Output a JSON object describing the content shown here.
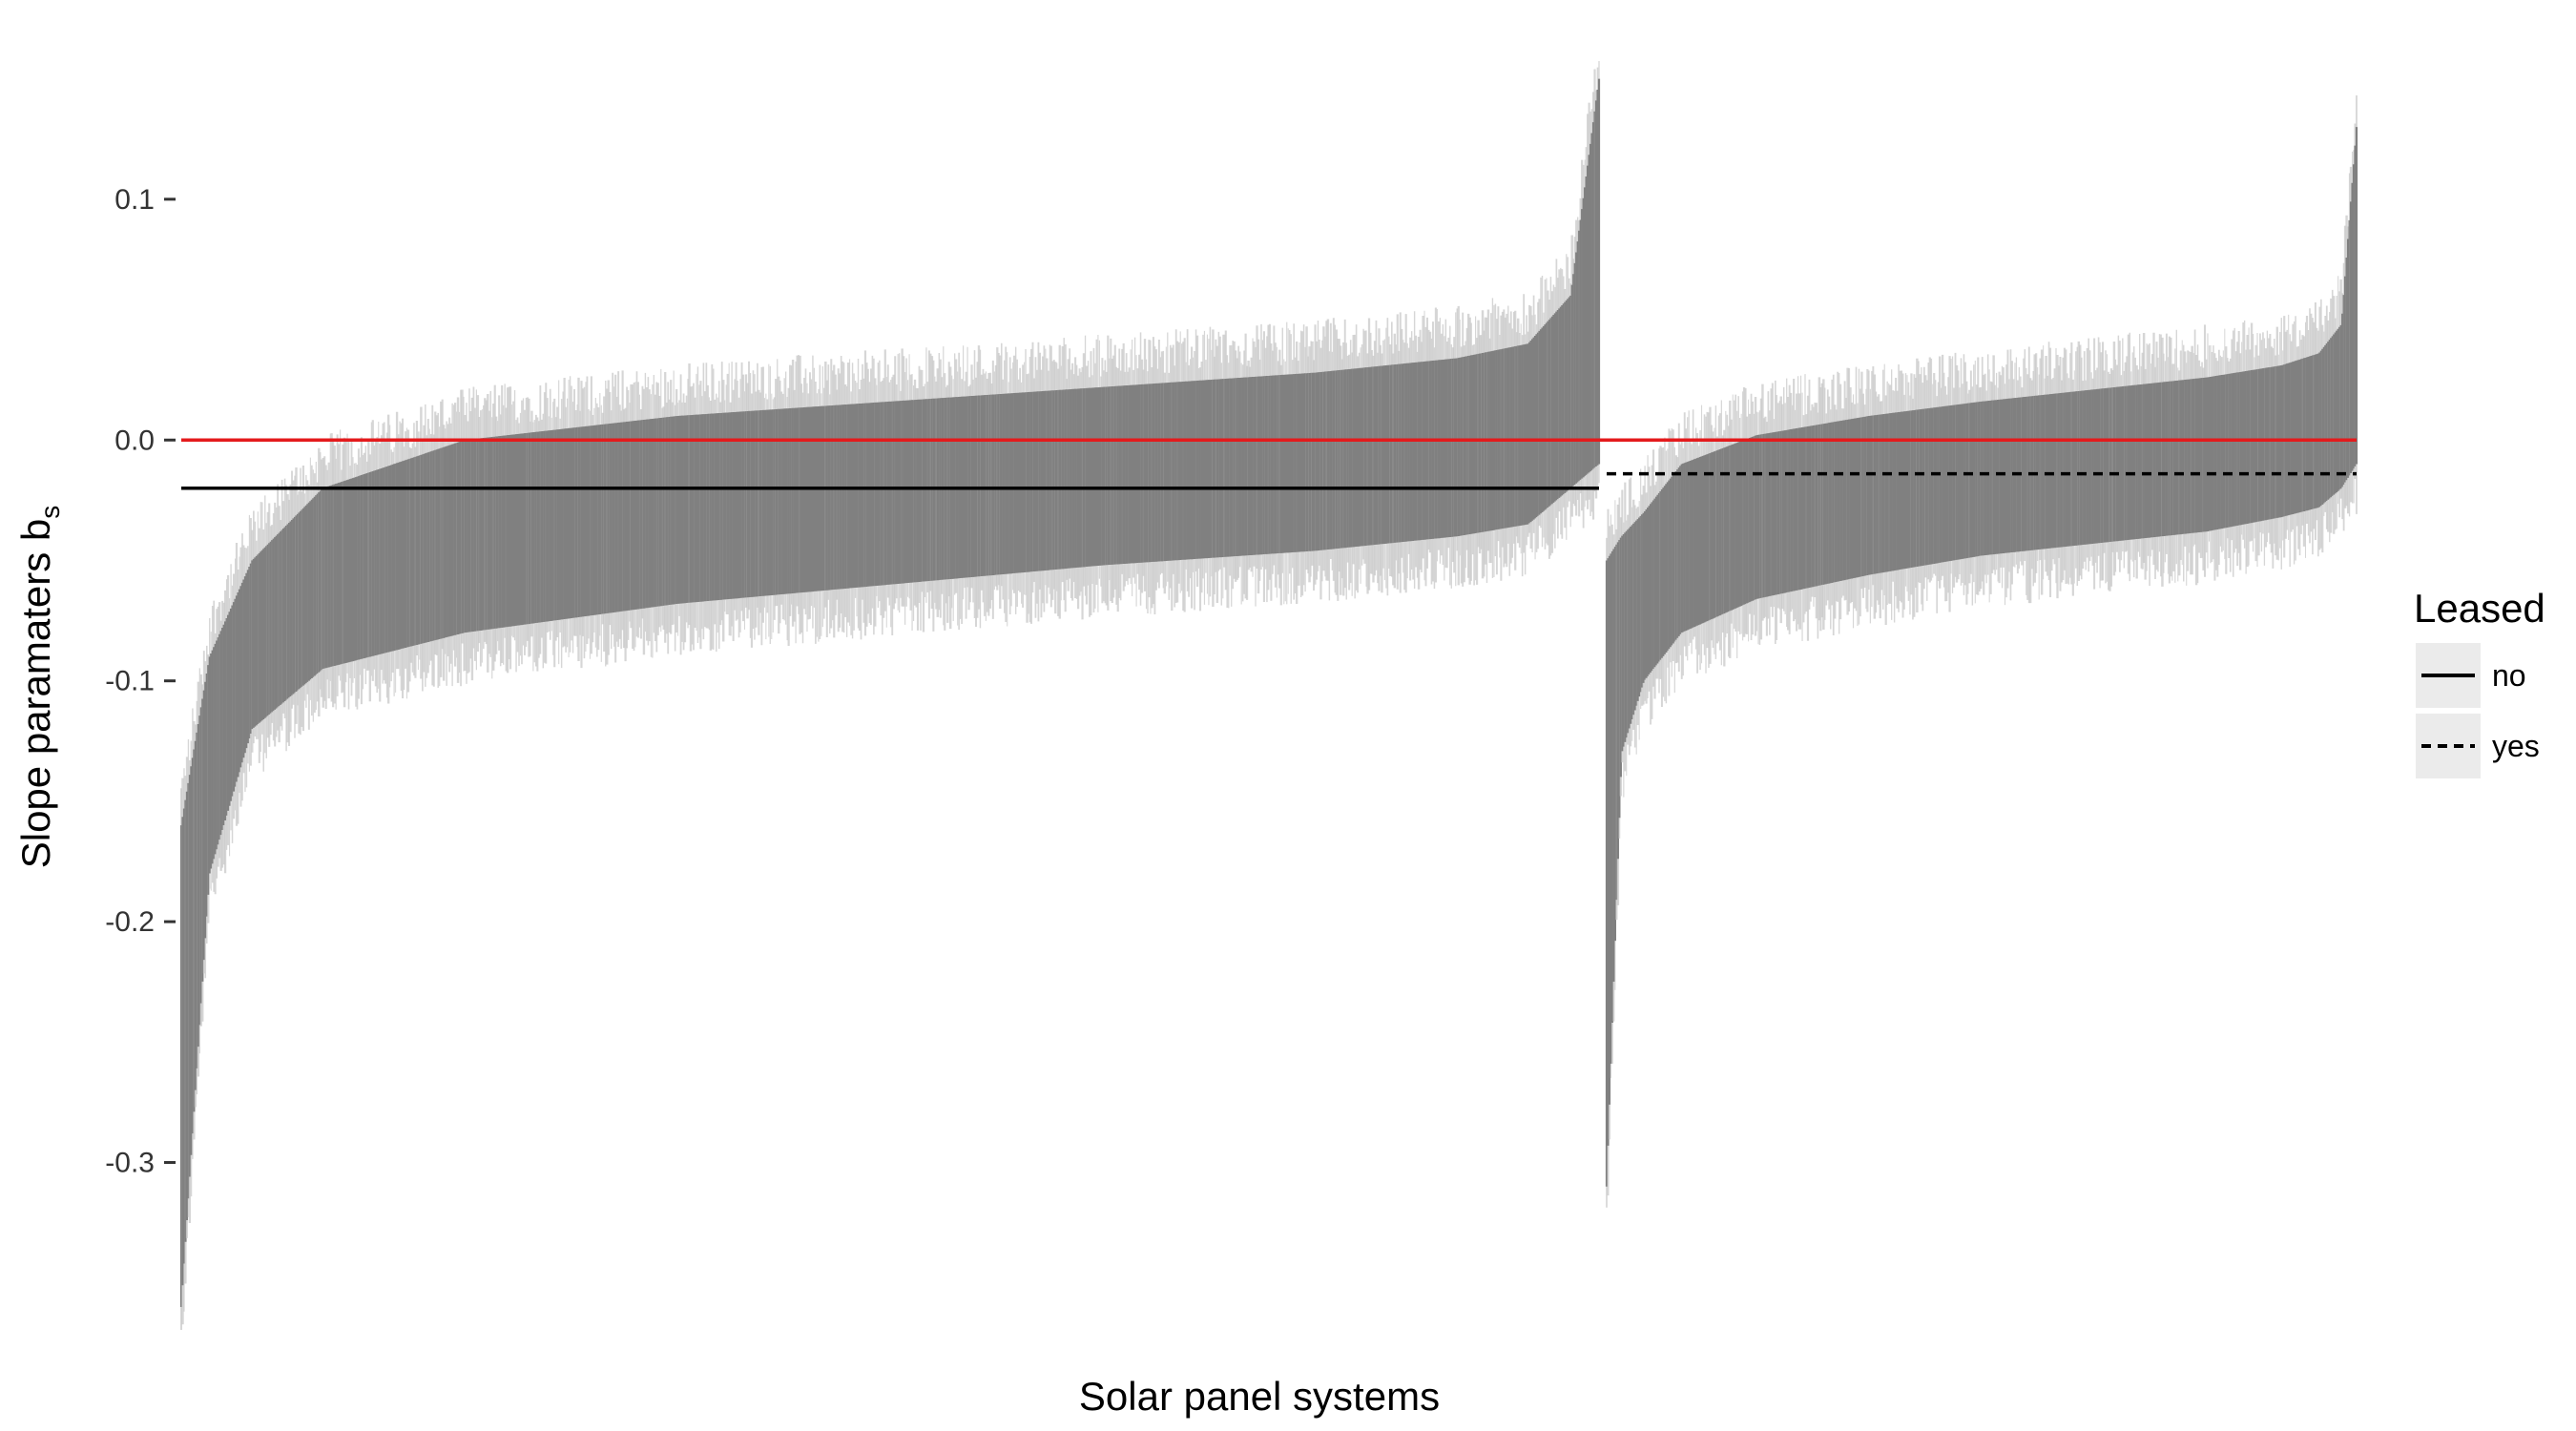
{
  "chart_data": {
    "type": "errorbar",
    "xlabel": "Solar panel systems",
    "ylabel": "Slope paramaters b",
    "ylabel_subscript": "s",
    "ylim": [
      -0.36,
      0.155
    ],
    "yticks": [
      0.1,
      0.0,
      -0.1,
      -0.2,
      -0.3
    ],
    "ytick_labels": [
      "0.1",
      "0.0",
      "-0.1",
      "-0.2",
      "-0.3"
    ],
    "grid": false,
    "legend": {
      "title": "Leased",
      "position": "right",
      "entries": [
        {
          "label": "no",
          "line_style": "solid"
        },
        {
          "label": "yes",
          "line_style": "dashed"
        }
      ]
    },
    "reference_line": {
      "y": 0.0,
      "color": "#e41a1c"
    },
    "groups": [
      {
        "leased": "no",
        "n_systems": 1000,
        "mean_line_y": -0.02,
        "line_style": "solid",
        "sorted_estimates": {
          "quantiles": [
            0.0,
            0.02,
            0.05,
            0.1,
            0.2,
            0.35,
            0.5,
            0.65,
            0.8,
            0.9,
            0.95,
            0.98,
            1.0
          ],
          "lower": [
            -0.36,
            -0.18,
            -0.12,
            -0.095,
            -0.08,
            -0.068,
            -0.06,
            -0.052,
            -0.046,
            -0.04,
            -0.035,
            -0.02,
            -0.01
          ],
          "upper": [
            -0.16,
            -0.09,
            -0.05,
            -0.02,
            0.0,
            0.01,
            0.016,
            0.022,
            0.028,
            0.034,
            0.04,
            0.06,
            0.15
          ]
        }
      },
      {
        "leased": "yes",
        "n_systems": 530,
        "mean_line_y": -0.014,
        "line_style": "dashed",
        "sorted_estimates": {
          "quantiles": [
            0.0,
            0.02,
            0.05,
            0.1,
            0.2,
            0.35,
            0.5,
            0.65,
            0.8,
            0.9,
            0.95,
            0.98,
            1.0
          ],
          "lower": [
            -0.31,
            -0.13,
            -0.1,
            -0.08,
            -0.066,
            -0.056,
            -0.048,
            -0.043,
            -0.038,
            -0.032,
            -0.028,
            -0.02,
            -0.01
          ],
          "upper": [
            -0.05,
            -0.04,
            -0.03,
            -0.01,
            0.002,
            0.01,
            0.016,
            0.021,
            0.026,
            0.031,
            0.036,
            0.048,
            0.13
          ]
        }
      }
    ],
    "colors": {
      "interval_core": "#808080",
      "interval_tail": "#c8c8c8",
      "reference": "#e41a1c",
      "mean_line": "#000000",
      "legend_key_bg": "#ebebeb"
    }
  }
}
